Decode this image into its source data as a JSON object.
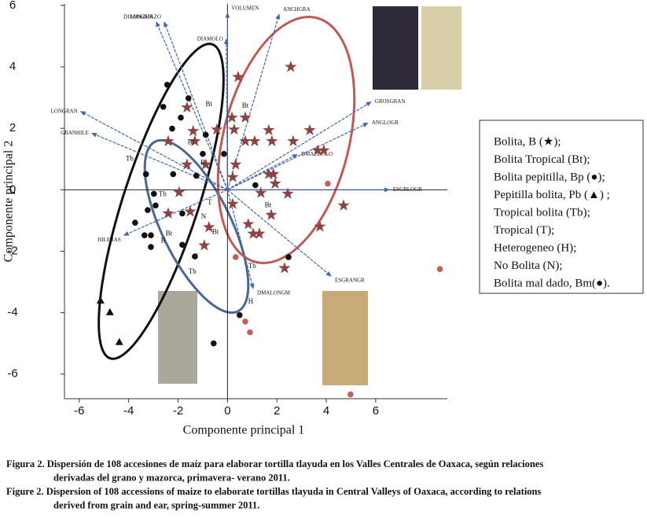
{
  "chart_data": {
    "type": "scatter",
    "x_label": "Componente principal 1",
    "y_label": "Componente principal 2",
    "xlim": [
      -6.6,
      8.9
    ],
    "ylim": [
      -6.8,
      6.05
    ],
    "xticks": [
      -6,
      -4,
      -2,
      0,
      2,
      4,
      6
    ],
    "yticks": [
      -6,
      -4,
      -2,
      0,
      2,
      4,
      6
    ],
    "series": [
      {
        "marker": "star",
        "color": "#8b4545",
        "x": [
          0.43,
          2.56,
          0.18,
          0.72,
          -1.64,
          -1.39,
          -0.43,
          0.27,
          1.67,
          3.33,
          -2.4,
          -1.32,
          0.72,
          1.1,
          1.8,
          2.66,
          3.65,
          3.9,
          -1.64,
          -0.88,
          0.33,
          1.67,
          1.86,
          0.21,
          1.93,
          -1.96,
          1.35,
          2.44,
          0.21,
          -2.4,
          -1.51,
          1.77,
          0.84,
          -0.75,
          1.04,
          1.29,
          -0.94,
          2.31,
          4.7,
          3.74
        ],
        "y": [
          3.67,
          4.0,
          2.35,
          2.35,
          2.68,
          1.91,
          1.96,
          1.96,
          1.94,
          1.94,
          1.58,
          1.58,
          1.58,
          1.58,
          1.58,
          1.58,
          1.28,
          1.28,
          0.82,
          0.82,
          0.82,
          0.51,
          0.51,
          0.41,
          0.2,
          -0.08,
          -0.1,
          -0.13,
          -0.46,
          -0.77,
          -0.71,
          -0.82,
          -1.12,
          -1.22,
          -1.43,
          -1.43,
          -1.81,
          -2.55,
          -0.51,
          -1.2
        ]
      },
      {
        "marker": "circle",
        "color": "#111111",
        "x": [
          -2.44,
          -1.58,
          -2.6,
          -1.89,
          -2.24,
          -0.88,
          -0.14,
          -1.0,
          -2.2,
          -3.3,
          -1.26,
          1.13,
          -2.98,
          -2.91,
          -3.23,
          -1.83,
          -3.74,
          -3.36,
          -3.1,
          -3.1,
          -1.83,
          -1.32,
          2.47,
          0.49,
          -0.56
        ],
        "y": [
          3.42,
          2.98,
          2.7,
          2.35,
          1.99,
          1.79,
          1.17,
          1.17,
          0.51,
          0.51,
          0.46,
          0.15,
          -0.13,
          -0.51,
          -0.66,
          -0.77,
          -1.07,
          -1.48,
          -1.48,
          -1.86,
          -1.79,
          -2.17,
          -2.19,
          -4.08,
          -5.0
        ]
      },
      {
        "marker": "triangle",
        "color": "#111111",
        "x": [
          -5.14,
          -4.76,
          -4.38
        ],
        "y": [
          -3.6,
          -3.98,
          -4.95
        ]
      },
      {
        "marker": "circle",
        "color": "#c0605a",
        "x": [
          4.06,
          0.33,
          0.72,
          0.91,
          8.6,
          4.98
        ],
        "y": [
          0.2,
          -2.19,
          -4.29,
          -4.64,
          -2.58,
          -6.66
        ]
      }
    ],
    "vectors": [
      {
        "label": "DIAMAZOR",
        "x": -2.88,
        "y": 5.46
      },
      {
        "label": "LONGMAZO",
        "x": -2.56,
        "y": 5.46
      },
      {
        "label": "VOLUMEN",
        "x": 0.0,
        "y": 5.75
      },
      {
        "label": "DIAMOLO",
        "x": -0.05,
        "y": 4.9
      },
      {
        "label": "ANCHGRA",
        "x": 2.09,
        "y": 5.71
      },
      {
        "label": "LONGRAN",
        "x": -5.94,
        "y": 2.55
      },
      {
        "label": "GRANHILE",
        "x": -5.49,
        "y": 1.84
      },
      {
        "label": "HILERAS",
        "x": -4.19,
        "y": -1.48
      },
      {
        "label": "GROSGRAN",
        "x": 5.81,
        "y": 2.86
      },
      {
        "label": "ANGLOGR",
        "x": 5.68,
        "y": 2.17
      },
      {
        "label": "DMAZDOLO",
        "x": 2.82,
        "y": 1.15
      },
      {
        "label": "ESGRLOGR",
        "x": 6.54,
        "y": 0
      },
      {
        "label": "ESGRANGR",
        "x": 4.19,
        "y": -2.81
      },
      {
        "label": "DMALONGM",
        "x": 1.04,
        "y": -3.21
      }
    ],
    "annotations": [
      {
        "text": "Bt",
        "x": -0.75,
        "y": 2.78
      },
      {
        "text": "Bt",
        "x": 0.72,
        "y": 2.73
      },
      {
        "text": "Bt",
        "x": -1.48,
        "y": 1.53
      },
      {
        "text": "Bt",
        "x": 1.64,
        "y": -0.51
      },
      {
        "text": "Bt",
        "x": -2.37,
        "y": -1.43
      },
      {
        "text": "Bt",
        "x": -0.49,
        "y": -1.38
      },
      {
        "text": "Tb",
        "x": -3.96,
        "y": 0.99
      },
      {
        "text": "Tb",
        "x": -2.63,
        "y": -0.15
      },
      {
        "text": "Tb",
        "x": 1.0,
        "y": -2.5
      },
      {
        "text": "Tb",
        "x": -1.42,
        "y": -2.68
      },
      {
        "text": "T",
        "x": -0.72,
        "y": -0.43
      },
      {
        "text": "T",
        "x": -1.26,
        "y": -2.19
      },
      {
        "text": "N",
        "x": -0.97,
        "y": -0.89
      },
      {
        "text": "H",
        "x": 0.94,
        "y": -3.65
      },
      {
        "text": "B",
        "x": -2.6,
        "y": -1.66
      },
      {
        "text": "B",
        "x": -1.0,
        "y": 0.87
      }
    ],
    "legend": [
      "Bolita, B (★);",
      "Bolita Tropical (Bt);",
      "Bolita pepitilla, Bp (●);",
      "Pepitilla bolita, Pb (▲) ;",
      "Tropical bolita (Tb);",
      "Tropical (T);",
      "Heterogeneo (H);",
      "No Bolita (N);",
      "Bolita mal dado, Bm(●)."
    ],
    "caption": [
      "Figura 2. Dispersión de 108 accesiones de maíz para elaborar tortilla tlayuda en los Valles Centrales de Oaxaca, según relaciones",
      "derivadas del grano y mazorca, primavera- verano 2011.",
      "Figure 2. Dispersion of 108 accessions of maize to elaborate tortillas tlayuda in Central Valleys of Oaxaca, according to relations",
      "derived from grain and ear, spring-summer 2011."
    ]
  }
}
